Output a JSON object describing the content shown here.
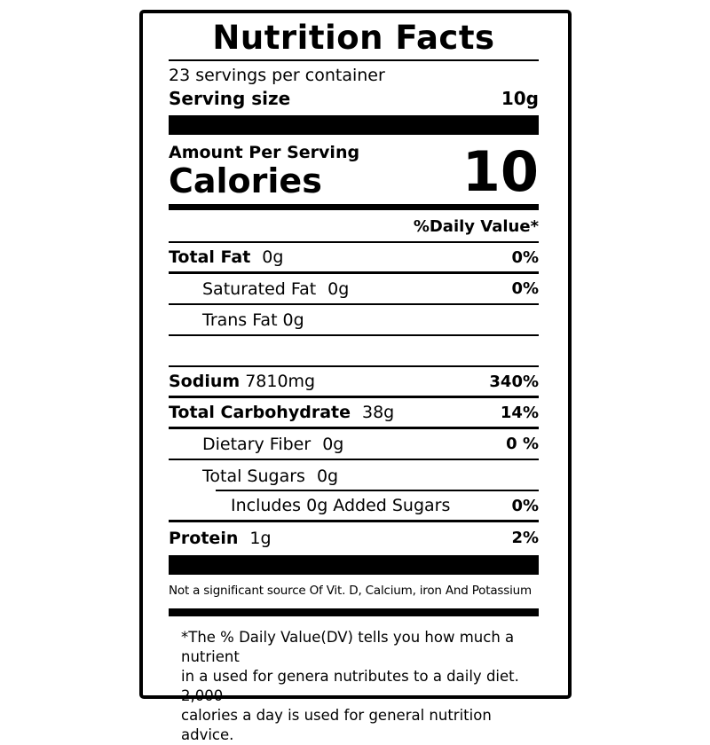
{
  "label": {
    "title": "Nutrition Facts",
    "servings_per_container": "23 servings per container",
    "serving_size": {
      "label": "Serving size",
      "value": "10g"
    },
    "amount_per_serving": "Amount Per Serving",
    "calories": {
      "label": "Calories",
      "value": "10"
    },
    "daily_value_header": "%Daily Value*",
    "rows": [
      {
        "name": "Total Fat",
        "amount": "0g",
        "dv": "0%"
      },
      {
        "name": "Saturated Fat",
        "amount": "0g",
        "dv": "0%"
      },
      {
        "name": "Trans Fat",
        "amount": "0g",
        "dv": ""
      },
      {
        "name": "",
        "amount": "",
        "dv": ""
      },
      {
        "name": "Sodium",
        "amount": "7810mg",
        "dv": "340%"
      },
      {
        "name": "Total Carbohydrate",
        "amount": "38g",
        "dv": "14%"
      },
      {
        "name": "Dietary Fiber",
        "amount": "0g",
        "dv": "0 %"
      },
      {
        "name": "Total Sugars",
        "amount": "0g",
        "dv": ""
      },
      {
        "name": "Includes 0g Added Sugars",
        "amount": "",
        "dv": "0%"
      },
      {
        "name": "Protein",
        "amount": "1g",
        "dv": "2%"
      }
    ],
    "not_significant": "Not a significant source Of Vit. D, Calcium, iron And Potassium",
    "footnote_lines": [
      "*The % Daily Value(DV) tells you how much a nutrient",
      "in a used for genera nutributes to a daily diet. 2,000",
      "calories a day is used for general nutrition advice."
    ],
    "colors": {
      "ink": "#000000",
      "background": "#ffffff"
    }
  }
}
